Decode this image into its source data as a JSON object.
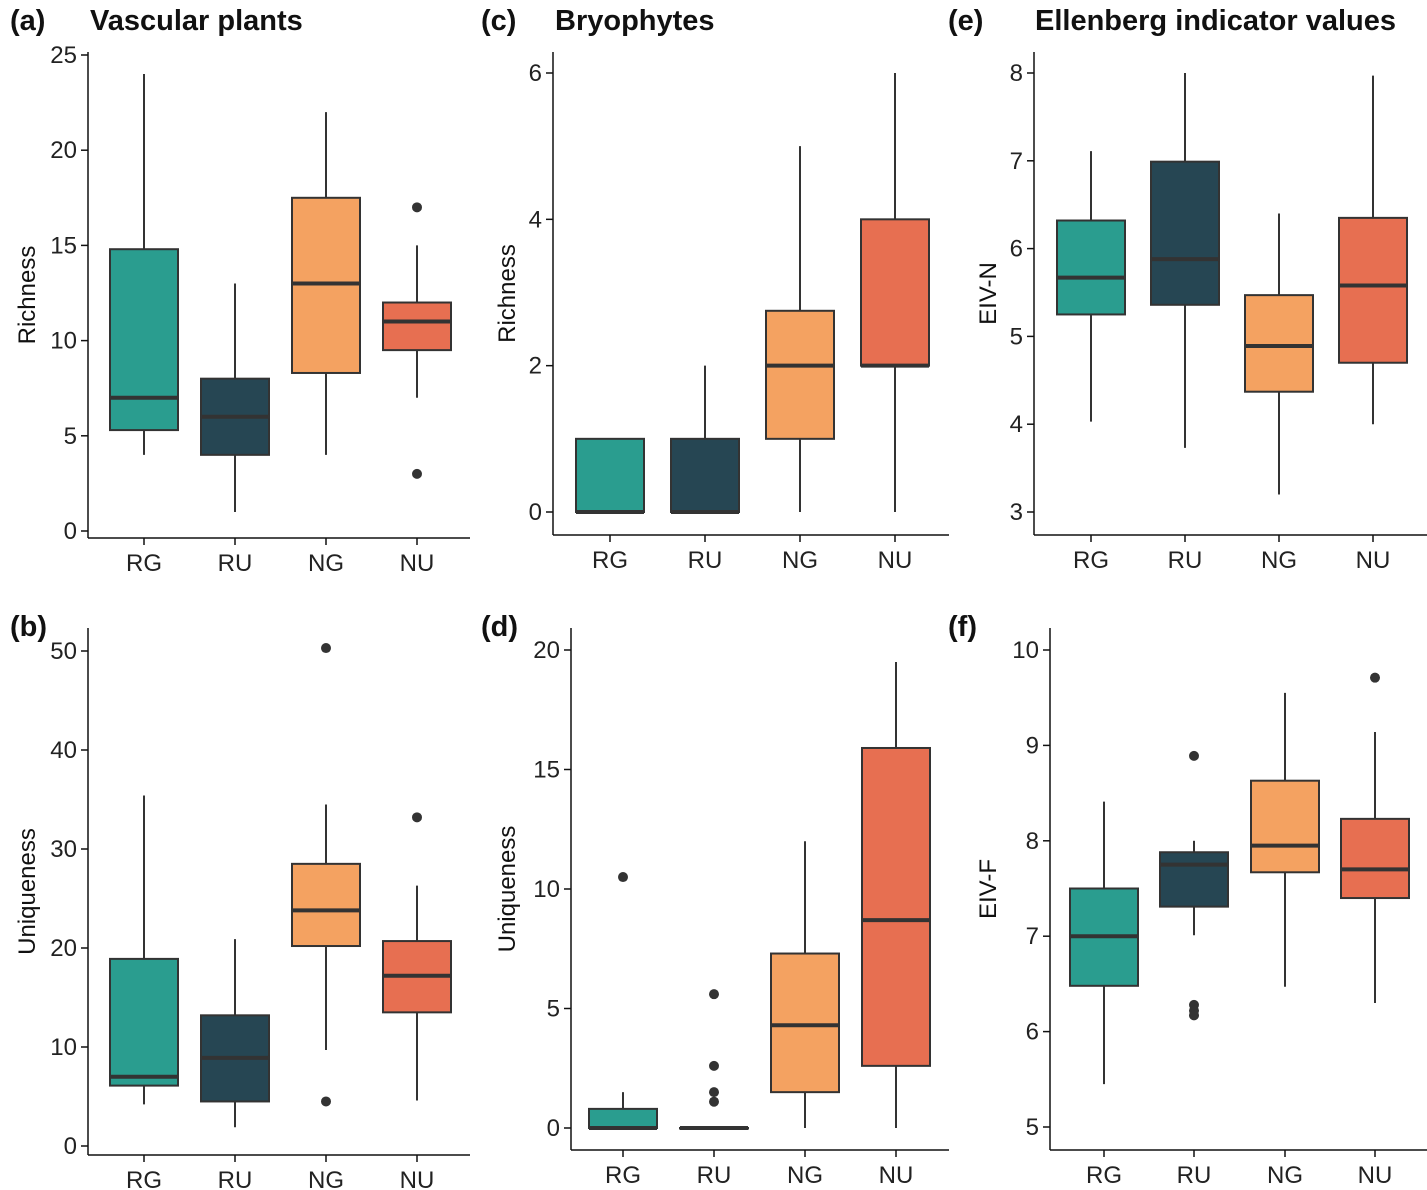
{
  "figure": {
    "column_titles": [
      "Vascular plants",
      "Bryophytes",
      "Ellenberg indicator values"
    ]
  },
  "colors": {
    "RG": "#2a9d8f",
    "RU": "#264653",
    "NG": "#f4a261",
    "NU": "#e76f51",
    "line": "#333333",
    "axis": "#111111"
  },
  "chart_data": [
    {
      "panel": "(a)",
      "type": "box",
      "categories": [
        "RG",
        "RU",
        "NG",
        "NU"
      ],
      "ylabel": "Richness",
      "ylim": [
        0,
        25
      ],
      "yticks": [
        0,
        5,
        10,
        15,
        20,
        25
      ],
      "boxes": [
        {
          "group": "RG",
          "min": 4,
          "q1": 5.3,
          "median": 7,
          "q3": 14.8,
          "max": 24,
          "outliers": []
        },
        {
          "group": "RU",
          "min": 1,
          "q1": 4,
          "median": 6,
          "q3": 8,
          "max": 13,
          "outliers": []
        },
        {
          "group": "NG",
          "min": 4,
          "q1": 8.3,
          "median": 13,
          "q3": 17.5,
          "max": 22,
          "outliers": []
        },
        {
          "group": "NU",
          "min": 7,
          "q1": 9.5,
          "median": 11,
          "q3": 12,
          "max": 15,
          "outliers": [
            17,
            3
          ]
        }
      ]
    },
    {
      "panel": "(b)",
      "type": "box",
      "categories": [
        "RG",
        "RU",
        "NG",
        "NU"
      ],
      "ylabel": "Uniqueness",
      "ylim": [
        0,
        50
      ],
      "yticks": [
        0,
        10,
        20,
        30,
        40,
        50
      ],
      "boxes": [
        {
          "group": "RG",
          "min": 4.2,
          "q1": 6.1,
          "median": 7,
          "q3": 18.9,
          "max": 35.4,
          "outliers": []
        },
        {
          "group": "RU",
          "min": 1.9,
          "q1": 4.5,
          "median": 8.9,
          "q3": 13.2,
          "max": 20.9,
          "outliers": []
        },
        {
          "group": "NG",
          "min": 9.7,
          "q1": 20.2,
          "median": 23.8,
          "q3": 28.5,
          "max": 34.5,
          "outliers": [
            50.3,
            4.5
          ]
        },
        {
          "group": "NU",
          "min": 4.6,
          "q1": 13.5,
          "median": 17.2,
          "q3": 20.7,
          "max": 26.3,
          "outliers": [
            33.2
          ]
        }
      ]
    },
    {
      "panel": "(c)",
      "type": "box",
      "categories": [
        "RG",
        "RU",
        "NG",
        "NU"
      ],
      "ylabel": "Richness",
      "ylim": [
        0,
        6
      ],
      "yticks": [
        0,
        2,
        4,
        6
      ],
      "boxes": [
        {
          "group": "RG",
          "min": 0,
          "q1": 0,
          "median": 0,
          "q3": 1,
          "max": 1,
          "outliers": []
        },
        {
          "group": "RU",
          "min": 0,
          "q1": 0,
          "median": 0,
          "q3": 1,
          "max": 2,
          "outliers": []
        },
        {
          "group": "NG",
          "min": 0,
          "q1": 1,
          "median": 2,
          "q3": 2.75,
          "max": 5,
          "outliers": []
        },
        {
          "group": "NU",
          "min": 0,
          "q1": 2,
          "median": 2,
          "q3": 4,
          "max": 6,
          "outliers": []
        }
      ]
    },
    {
      "panel": "(d)",
      "type": "box",
      "categories": [
        "RG",
        "RU",
        "NG",
        "NU"
      ],
      "ylabel": "Uniqueness",
      "ylim": [
        0,
        20
      ],
      "yticks": [
        0,
        5,
        10,
        15,
        20
      ],
      "boxes": [
        {
          "group": "RG",
          "min": 0,
          "q1": 0,
          "median": 0,
          "q3": 0.8,
          "max": 1.5,
          "outliers": [
            10.5
          ]
        },
        {
          "group": "RU",
          "min": 0,
          "q1": 0,
          "median": 0,
          "q3": 0,
          "max": 0,
          "outliers": [
            5.6,
            2.6,
            1.5,
            1.1
          ]
        },
        {
          "group": "NG",
          "min": 0,
          "q1": 1.5,
          "median": 4.3,
          "q3": 7.3,
          "max": 12,
          "outliers": []
        },
        {
          "group": "NU",
          "min": 0,
          "q1": 2.6,
          "median": 8.7,
          "q3": 15.9,
          "max": 19.5,
          "outliers": []
        }
      ]
    },
    {
      "panel": "(e)",
      "type": "box",
      "categories": [
        "RG",
        "RU",
        "NG",
        "NU"
      ],
      "ylabel": "EIV-N",
      "ylim": [
        3,
        8
      ],
      "yticks": [
        3,
        4,
        5,
        6,
        7,
        8
      ],
      "boxes": [
        {
          "group": "RG",
          "min": 4.03,
          "q1": 5.25,
          "median": 5.67,
          "q3": 6.32,
          "max": 7.11,
          "outliers": []
        },
        {
          "group": "RU",
          "min": 3.73,
          "q1": 5.36,
          "median": 5.88,
          "q3": 6.99,
          "max": 8,
          "outliers": []
        },
        {
          "group": "NG",
          "min": 3.2,
          "q1": 4.37,
          "median": 4.89,
          "q3": 5.47,
          "max": 6.4,
          "outliers": []
        },
        {
          "group": "NU",
          "min": 4,
          "q1": 4.7,
          "median": 5.58,
          "q3": 6.35,
          "max": 7.97,
          "outliers": []
        }
      ]
    },
    {
      "panel": "(f)",
      "type": "box",
      "categories": [
        "RG",
        "RU",
        "NG",
        "NU"
      ],
      "ylabel": "EIV-F",
      "ylim": [
        5,
        10
      ],
      "yticks": [
        5,
        6,
        7,
        8,
        9,
        10
      ],
      "boxes": [
        {
          "group": "RG",
          "min": 5.45,
          "q1": 6.48,
          "median": 7,
          "q3": 7.5,
          "max": 8.41,
          "outliers": []
        },
        {
          "group": "RU",
          "min": 7.01,
          "q1": 7.31,
          "median": 7.75,
          "q3": 7.88,
          "max": 8,
          "outliers": [
            8.89,
            6.28,
            6.22,
            6.17
          ]
        },
        {
          "group": "NG",
          "min": 6.47,
          "q1": 7.67,
          "median": 7.95,
          "q3": 8.63,
          "max": 9.55,
          "outliers": []
        },
        {
          "group": "NU",
          "min": 6.3,
          "q1": 7.4,
          "median": 7.7,
          "q3": 8.23,
          "max": 9.14,
          "outliers": [
            9.71
          ]
        }
      ]
    }
  ]
}
